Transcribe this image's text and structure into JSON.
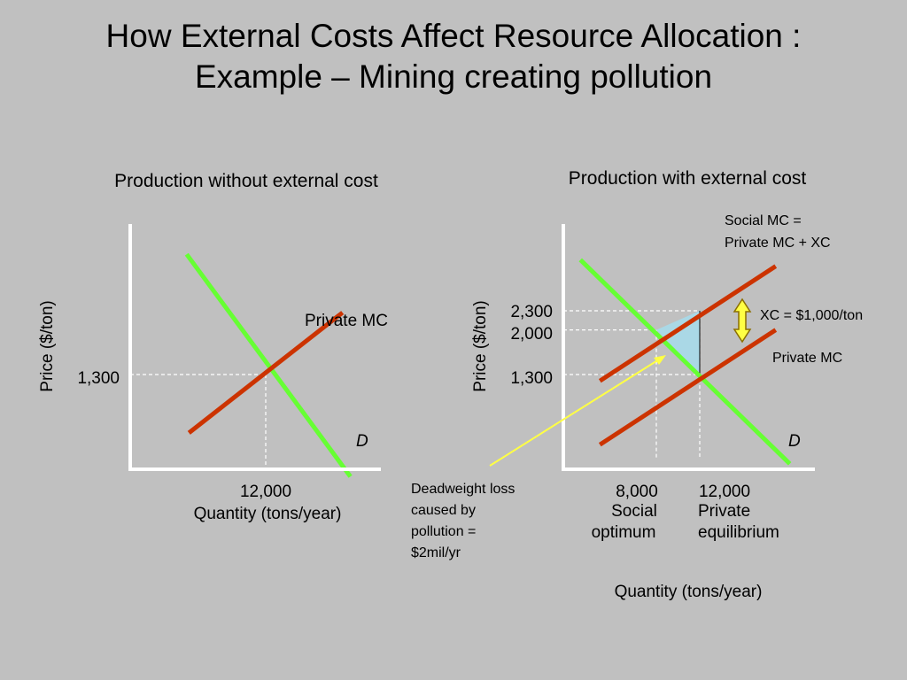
{
  "title_line1": "How External Costs Affect Resource Allocation :",
  "title_line2": "Example – Mining creating pollution",
  "colors": {
    "background": "#c0c0c0",
    "demand": "#66ff33",
    "supply": "#cc3300",
    "deadweight": "#aad8e6",
    "arrow": "#ffff44",
    "arrow_outline": "#8b6f00"
  },
  "chart_data": [
    {
      "type": "line",
      "title": "Production without external cost",
      "xlabel": "Quantity (tons/year)",
      "ylabel": "Price ($/ton)",
      "x_ticks": [
        {
          "value": 12000,
          "label": "12,000"
        }
      ],
      "y_ticks": [
        {
          "value": 1300,
          "label": "1,300"
        }
      ],
      "series": [
        {
          "name": "D",
          "color": "#66ff33",
          "points": [
            [
              5000,
              2950
            ],
            [
              19500,
              -100
            ]
          ]
        },
        {
          "name": "Private MC",
          "color": "#cc3300",
          "points": [
            [
              5200,
              500
            ],
            [
              18800,
              2150
            ]
          ]
        }
      ],
      "equilibrium": {
        "x": 12000,
        "y": 1300
      }
    },
    {
      "type": "line",
      "title": "Production with external cost",
      "xlabel": "Quantity (tons/year)",
      "ylabel": "Price ($/ton)",
      "x_ticks": [
        {
          "value": 8000,
          "label": "8,000",
          "sublabel": [
            "Social",
            "optimum"
          ]
        },
        {
          "value": 12000,
          "label": "12,000",
          "sublabel": [
            "Private",
            "equilibrium"
          ]
        }
      ],
      "y_ticks": [
        {
          "value": 2300,
          "label": "2,300"
        },
        {
          "value": 2000,
          "label": "2,000"
        },
        {
          "value": 1300,
          "label": "1,300"
        }
      ],
      "series": [
        {
          "name": "D",
          "color": "#66ff33",
          "points": [
            [
              1000,
              3100
            ],
            [
              20300,
              -100
            ]
          ]
        },
        {
          "name": "Private MC",
          "color": "#cc3300",
          "points": [
            [
              2800,
              200
            ],
            [
              19000,
              2000
            ]
          ]
        },
        {
          "name": "Social MC = Private MC + XC",
          "color": "#cc3300",
          "points": [
            [
              2800,
              1200
            ],
            [
              19000,
              3000
            ]
          ]
        }
      ],
      "deadweight_loss": {
        "vertices": [
          [
            8000,
            2000
          ],
          [
            12000,
            2300
          ],
          [
            12000,
            1300
          ]
        ],
        "label": [
          "Deadweight loss",
          "caused by",
          "pollution =",
          "$2mil/yr"
        ]
      },
      "xc_label": "$1,000/ton"
    }
  ],
  "labels": {
    "left_mc": "Private MC",
    "left_d": "D",
    "right_d": "D",
    "right_private_mc": "Private MC",
    "social_mc_line1": "Social MC =",
    "social_mc_line2": "Private MC + XC",
    "xc": "XC = $1,000/ton"
  }
}
